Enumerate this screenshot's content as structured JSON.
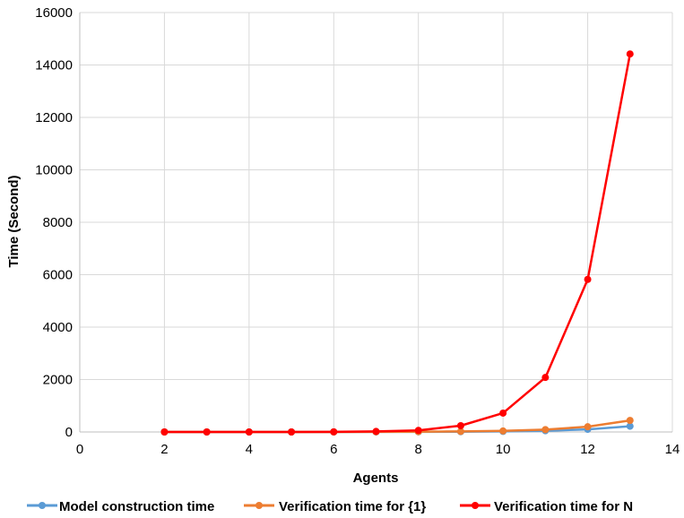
{
  "chart_data": {
    "type": "line",
    "xlabel": "Agents",
    "ylabel": "Time (Second)",
    "xlim": [
      0,
      14
    ],
    "ylim": [
      0,
      16000
    ],
    "xticks": [
      0,
      2,
      4,
      6,
      8,
      10,
      12,
      14
    ],
    "yticks": [
      0,
      2000,
      4000,
      6000,
      8000,
      10000,
      12000,
      14000,
      16000
    ],
    "grid": true,
    "legend_position": "bottom",
    "x": [
      2,
      3,
      4,
      5,
      6,
      7,
      8,
      9,
      10,
      11,
      12,
      13
    ],
    "series": [
      {
        "name": "Model construction time",
        "color": "#5b9bd5",
        "values": [
          0,
          0,
          0,
          0,
          0,
          2,
          5,
          10,
          20,
          45,
          100,
          220
        ]
      },
      {
        "name": "Verification time for {1}",
        "color": "#ed7d31",
        "values": [
          0,
          0,
          0,
          0,
          0,
          5,
          10,
          20,
          40,
          90,
          200,
          440
        ]
      },
      {
        "name": "Verification time for N",
        "color": "#ff0000",
        "values": [
          0,
          0,
          0,
          0,
          5,
          20,
          60,
          240,
          720,
          2080,
          5820,
          14420
        ]
      }
    ]
  }
}
